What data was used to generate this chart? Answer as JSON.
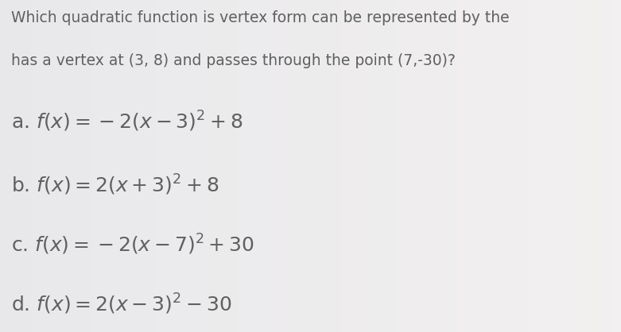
{
  "question_line1": "Which quadratic function is vertex form can be represented by the",
  "question_line2": "has a vertex at (3, 8) and passes through the point (7,-30)?",
  "options": [
    {
      "label": "a.",
      "formula": "$f(x) = -2(x - 3)^2 + 8$"
    },
    {
      "label": "b.",
      "formula": "$f(x) = 2(x + 3)^2 + 8$"
    },
    {
      "label": "c.",
      "formula": "$f(x) = -2(x - 7)^2 + 30$"
    },
    {
      "label": "d.",
      "formula": "$f(x) = 2(x - 3)^2 - 30$"
    }
  ],
  "bg_color": "#e8e8ec",
  "text_color": "#606060",
  "formula_color": "#606060",
  "question_fontsize": 13.5,
  "option_fontsize": 18,
  "figsize": [
    7.81,
    4.18
  ],
  "dpi": 100
}
